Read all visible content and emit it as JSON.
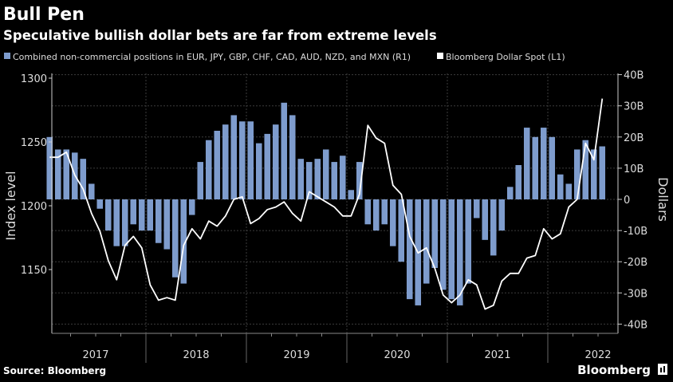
{
  "title": "Bull Pen",
  "subtitle": "Speculative bullish dollar bets are far from extreme levels",
  "source": "Source: Bloomberg",
  "logo": "Bloomberg",
  "colors": {
    "background": "#000000",
    "bars": "#7e9ccd",
    "line": "#ffffff",
    "grid": "#3c3c3c"
  },
  "chart_data": {
    "type": "bar+line",
    "legend_placement": "top-left",
    "grid": true,
    "x_frequency": "monthly",
    "x_start": "2017-01",
    "x_tick_labels": [
      "2017",
      "2018",
      "2019",
      "2020",
      "2021",
      "2022"
    ],
    "left_axis": {
      "label": "Index level",
      "range": [
        1100,
        1300
      ],
      "ticks": [
        "1300",
        "1250",
        "1200",
        "1150"
      ]
    },
    "right_axis": {
      "label": "Dollars",
      "range": [
        -40,
        40
      ],
      "ticks": [
        "40B",
        "30B",
        "20B",
        "10B",
        "0",
        "-10B",
        "-20B",
        "-30B",
        "-40B"
      ]
    },
    "series": [
      {
        "name": "Combined non-commercial positions in EUR, JPY, GBP, CHF, CAD, AUD, NZD, and MXN (R1)",
        "type": "bar",
        "axis": "right",
        "unit": "B USD",
        "values": [
          20,
          16,
          16,
          15,
          13,
          5,
          -3,
          -10,
          -15,
          -15,
          -8,
          -10,
          -10,
          -14,
          -16,
          -25,
          -27,
          -5,
          12,
          19,
          22,
          24,
          27,
          25,
          25,
          18,
          21,
          24,
          31,
          27,
          13,
          12,
          13,
          16,
          12,
          14,
          3,
          12,
          -8,
          -10,
          -8,
          -15,
          -20,
          -32,
          -34,
          -27,
          -22,
          -29,
          -32,
          -34,
          -27,
          -6,
          -13,
          -18,
          -10,
          4,
          11,
          23,
          20,
          23,
          20,
          8,
          5,
          16,
          19,
          16,
          17
        ]
      },
      {
        "name": "Bloomberg Dollar Spot (L1)",
        "type": "line",
        "axis": "left",
        "unit": "index",
        "values": [
          1238,
          1238,
          1242,
          1224,
          1213,
          1194,
          1180,
          1157,
          1142,
          1169,
          1176,
          1167,
          1138,
          1126,
          1128,
          1126,
          1169,
          1182,
          1174,
          1188,
          1184,
          1192,
          1205,
          1207,
          1186,
          1190,
          1197,
          1199,
          1203,
          1194,
          1188,
          1211,
          1207,
          1203,
          1199,
          1192,
          1192,
          1209,
          1263,
          1253,
          1249,
          1216,
          1209,
          1176,
          1163,
          1167,
          1151,
          1130,
          1124,
          1130,
          1142,
          1138,
          1119,
          1122,
          1141,
          1147,
          1147,
          1159,
          1161,
          1182,
          1174,
          1178,
          1199,
          1205,
          1249,
          1236,
          1284
        ]
      }
    ]
  }
}
